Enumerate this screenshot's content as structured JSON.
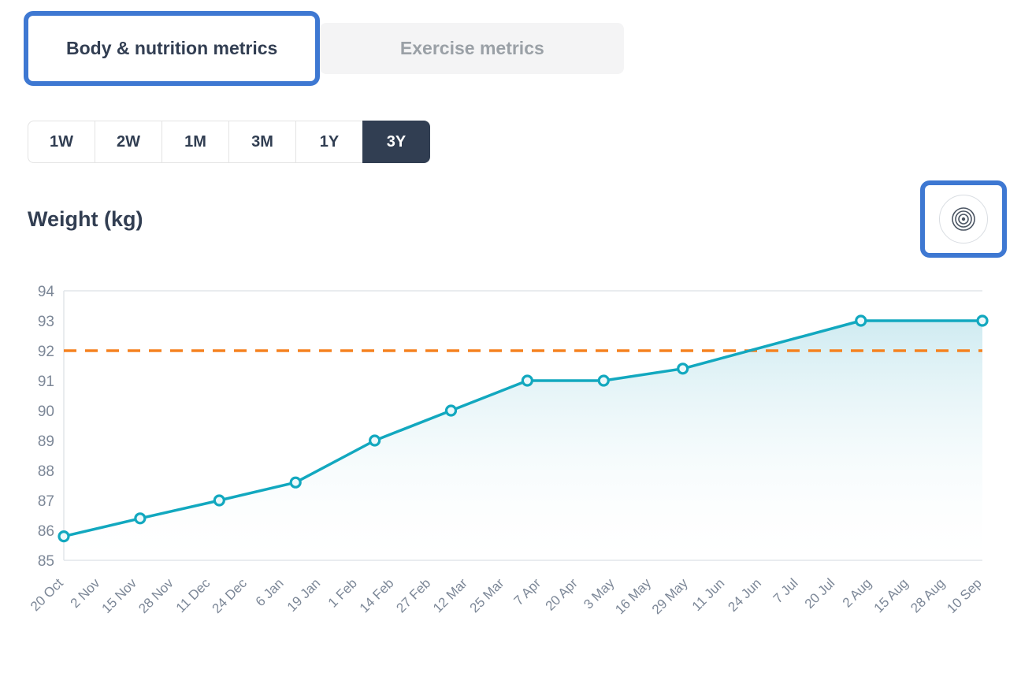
{
  "tabs": [
    {
      "label": "Body & nutrition metrics",
      "active": true
    },
    {
      "label": "Exercise metrics",
      "active": false
    }
  ],
  "range_buttons": [
    {
      "label": "1W",
      "selected": false
    },
    {
      "label": "2W",
      "selected": false
    },
    {
      "label": "1M",
      "selected": false
    },
    {
      "label": "3M",
      "selected": false
    },
    {
      "label": "1Y",
      "selected": false
    },
    {
      "label": "3Y",
      "selected": true
    }
  ],
  "icons": {
    "goal_button_icon": "target-icon"
  },
  "colors": {
    "accent_blue": "#3e78d2",
    "dark_navy": "#313e52",
    "teal_line": "#12a8bf",
    "goal_orange": "#f58220",
    "inactive_tab_bg": "#f4f4f5",
    "inactive_tab_text": "#9aa0a6",
    "axis_text": "#7c8797",
    "border_gray": "#e2e6ea"
  },
  "chart_data": {
    "type": "area",
    "title": "Weight (kg)",
    "xlabel": "",
    "ylabel": "",
    "ylim": [
      85,
      94
    ],
    "y_ticks": [
      85,
      86,
      87,
      88,
      89,
      90,
      91,
      92,
      93,
      94
    ],
    "x_tick_labels": [
      "20 Oct",
      "2 Nov",
      "15 Nov",
      "28 Nov",
      "11 Dec",
      "24 Dec",
      "6 Jan",
      "19 Jan",
      "1 Feb",
      "14 Feb",
      "27 Feb",
      "12 Mar",
      "25 Mar",
      "7 Apr",
      "20 Apr",
      "3 May",
      "16 May",
      "29 May",
      "11 Jun",
      "24 Jun",
      "7 Jul",
      "20 Jul",
      "2 Aug",
      "15 Aug",
      "28 Aug",
      "10 Sep"
    ],
    "x_tick_interval_days": 13,
    "x_total_days": 325,
    "series": [
      {
        "name": "Weight (kg)",
        "x_days": [
          0,
          27,
          55,
          82,
          110,
          137,
          164,
          191,
          219,
          282,
          325
        ],
        "values": [
          85.8,
          86.4,
          87,
          87.6,
          89,
          90,
          91,
          91,
          91.4,
          93,
          93
        ]
      }
    ],
    "goal_line": {
      "value": 92,
      "style": "dashed",
      "color": "#f58220"
    },
    "line_color": "#12a8bf",
    "area_fill_top": "#a9dbe6",
    "grid": false,
    "legend": false
  }
}
